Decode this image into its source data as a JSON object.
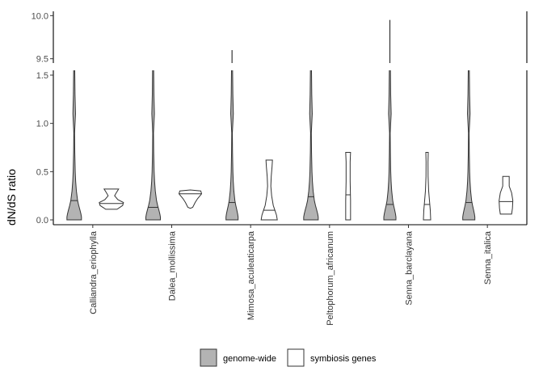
{
  "chart_data": {
    "type": "violin",
    "ylabel": "dN/dS ratio",
    "xlabel": "",
    "y_axis_break": true,
    "ylim_lower_panel": [
      -0.05,
      1.55
    ],
    "ylim_upper_panel": [
      9.45,
      10.05
    ],
    "yticks_lower": [
      "0.0",
      "0.5",
      "1.0",
      "1.5"
    ],
    "yticks_upper": [
      "9.5",
      "10.0"
    ],
    "categories": [
      "Calliandra_eriophylla",
      "Dalea_mollissima",
      "Mimosa_aculeaticarpa",
      "Peltophorum_africanum",
      "Senna_barclayana",
      "Senna_italica"
    ],
    "legend_position": "bottom",
    "grid": false,
    "series": [
      {
        "name": "genome-wide",
        "color": "#b3b3b3",
        "medians": [
          0.2,
          0.13,
          0.18,
          0.24,
          0.16,
          0.18
        ],
        "max_values": [
          1.55,
          1.55,
          9.6,
          1.55,
          9.95,
          1.55
        ]
      },
      {
        "name": "symbiosis genes",
        "color": "#ffffff",
        "medians": [
          0.17,
          0.27,
          0.1,
          0.26,
          0.16,
          0.19
        ],
        "ranges": [
          [
            0.11,
            0.32
          ],
          [
            0.12,
            0.31
          ],
          [
            0.0,
            0.62
          ],
          [
            0.0,
            0.7
          ],
          [
            0.0,
            0.7
          ],
          [
            0.06,
            0.45
          ]
        ]
      }
    ]
  }
}
